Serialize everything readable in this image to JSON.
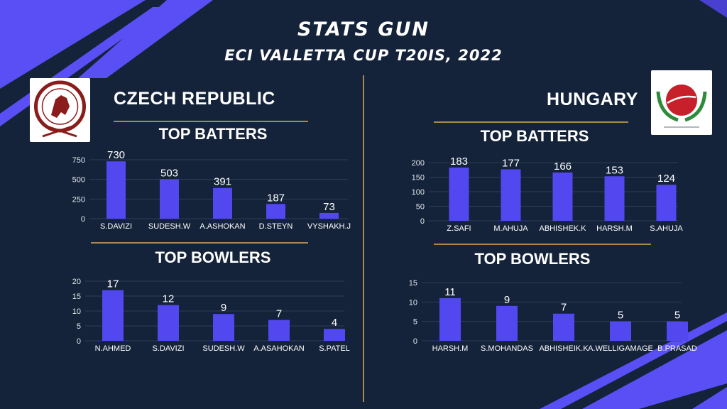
{
  "title": "STATS GUN",
  "subtitle": "ECI VALLETTA CUP T20IS, 2022",
  "colors": {
    "background": "#14233a",
    "bar": "#5347f0",
    "rule": "#a8884f",
    "accent": "#5a4ff5",
    "text": "#ffffff",
    "axis_text": "#e6e8ef"
  },
  "teams": [
    {
      "name": "CZECH REPUBLIC",
      "logo": "czech-cricket-union-logo",
      "batters_heading": "TOP BATTERS",
      "bowlers_heading": "TOP BOWLERS"
    },
    {
      "name": "HUNGARY",
      "logo": "hungary-cricket-logo",
      "batters_heading": "TOP BATTERS",
      "bowlers_heading": "TOP BOWLERS"
    }
  ],
  "chart_data": [
    {
      "type": "bar",
      "id": "cz-batters",
      "title": "TOP BATTERS",
      "categories": [
        "S.DAVIZI",
        "SUDESH.W",
        "A.ASHOKAN",
        "D.STEYN",
        "VYSHAKH.J"
      ],
      "values": [
        730,
        503,
        391,
        187,
        73
      ],
      "ylim": [
        0,
        750
      ],
      "yticks": [
        0,
        250,
        500,
        750
      ],
      "grid": true
    },
    {
      "type": "bar",
      "id": "cz-bowlers",
      "title": "TOP BOWLERS",
      "categories": [
        "N.AHMED",
        "S.DAVIZI",
        "SUDESH.W",
        "A.ASAHOKAN",
        "S.PATEL"
      ],
      "values": [
        17,
        12,
        9,
        7,
        4
      ],
      "ylim": [
        0,
        20
      ],
      "yticks": [
        0,
        5,
        10,
        15,
        20
      ],
      "grid": true
    },
    {
      "type": "bar",
      "id": "hu-batters",
      "title": "TOP BATTERS",
      "categories": [
        "Z.SAFI",
        "M.AHUJA",
        "ABHISHEK.K",
        "HARSH.M",
        "S.AHUJA"
      ],
      "values": [
        183,
        177,
        166,
        153,
        124
      ],
      "ylim": [
        0,
        200
      ],
      "yticks": [
        0,
        50,
        100,
        150,
        200
      ],
      "grid": true
    },
    {
      "type": "bar",
      "id": "hu-bowlers",
      "title": "TOP BOWLERS",
      "categories": [
        "HARSH.M",
        "S.MOHANDAS",
        "ABHISHEIK.K",
        "A.WELLIGAMAGE",
        "B.PRASAD"
      ],
      "values": [
        11,
        9,
        7,
        5,
        5
      ],
      "ylim": [
        0,
        15
      ],
      "yticks": [
        0,
        5,
        10,
        15
      ],
      "grid": true
    }
  ]
}
